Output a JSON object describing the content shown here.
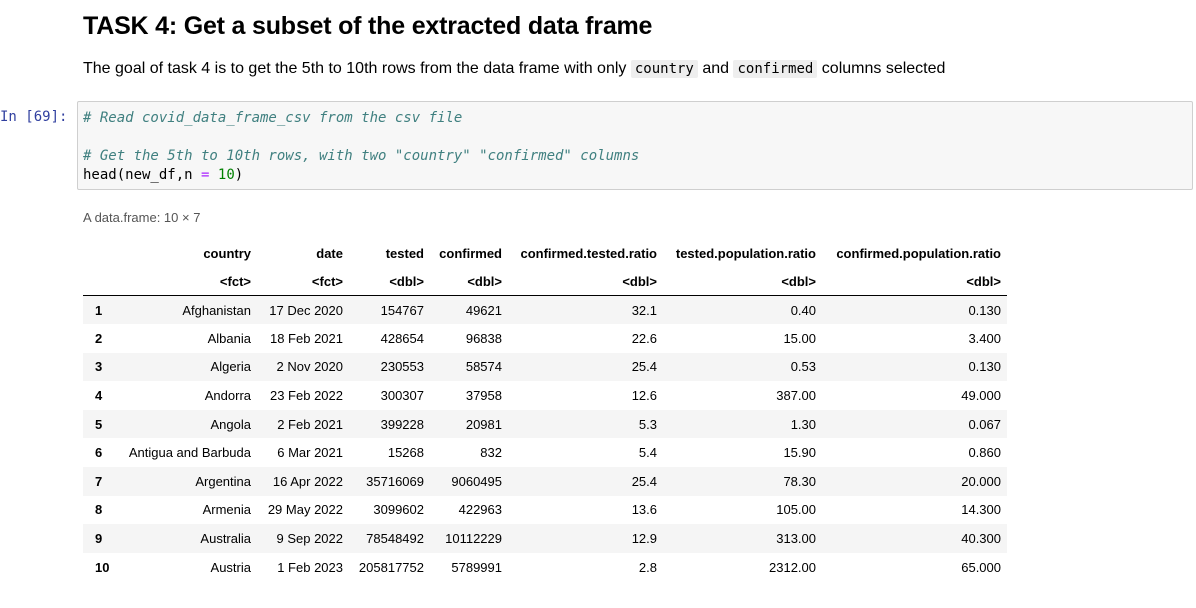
{
  "markdown": {
    "heading": "TASK 4: Get a subset of the extracted data frame",
    "desc_prefix": "The goal of task 4 is to get the 5th to 10th rows from the data frame with only",
    "code_a": "country",
    "desc_mid": "and",
    "code_b": "confirmed",
    "desc_suffix": "columns selected"
  },
  "cell": {
    "prompt": "In [69]:",
    "line1": "# Read covid_data_frame_csv from the csv file",
    "line3": "# Get the 5th to 10th rows, with two \"country\" \"confirmed\" columns",
    "line4_fn": "head(new_df,n ",
    "line4_op": "=",
    "line4_sp": " ",
    "line4_num": "10",
    "line4_end": ")"
  },
  "output": {
    "caption": "A data.frame: 10 × 7",
    "columns": [
      "country",
      "date",
      "tested",
      "confirmed",
      "confirmed.tested.ratio",
      "tested.population.ratio",
      "confirmed.population.ratio"
    ],
    "types": [
      "<fct>",
      "<fct>",
      "<dbl>",
      "<dbl>",
      "<dbl>",
      "<dbl>",
      "<dbl>"
    ],
    "rows": [
      [
        "1",
        "Afghanistan",
        "17 Dec 2020",
        "154767",
        "49621",
        "32.1",
        "0.40",
        "0.130"
      ],
      [
        "2",
        "Albania",
        "18 Feb 2021",
        "428654",
        "96838",
        "22.6",
        "15.00",
        "3.400"
      ],
      [
        "3",
        "Algeria",
        "2 Nov 2020",
        "230553",
        "58574",
        "25.4",
        "0.53",
        "0.130"
      ],
      [
        "4",
        "Andorra",
        "23 Feb 2022",
        "300307",
        "37958",
        "12.6",
        "387.00",
        "49.000"
      ],
      [
        "5",
        "Angola",
        "2 Feb 2021",
        "399228",
        "20981",
        "5.3",
        "1.30",
        "0.067"
      ],
      [
        "6",
        "Antigua and Barbuda",
        "6 Mar 2021",
        "15268",
        "832",
        "5.4",
        "15.90",
        "0.860"
      ],
      [
        "7",
        "Argentina",
        "16 Apr 2022",
        "35716069",
        "9060495",
        "25.4",
        "78.30",
        "20.000"
      ],
      [
        "8",
        "Armenia",
        "29 May 2022",
        "3099602",
        "422963",
        "13.6",
        "105.00",
        "14.300"
      ],
      [
        "9",
        "Australia",
        "9 Sep 2022",
        "78548492",
        "10112229",
        "12.9",
        "313.00",
        "40.300"
      ],
      [
        "10",
        "Austria",
        "1 Feb 2023",
        "205817752",
        "5789991",
        "2.8",
        "2312.00",
        "65.000"
      ]
    ]
  }
}
